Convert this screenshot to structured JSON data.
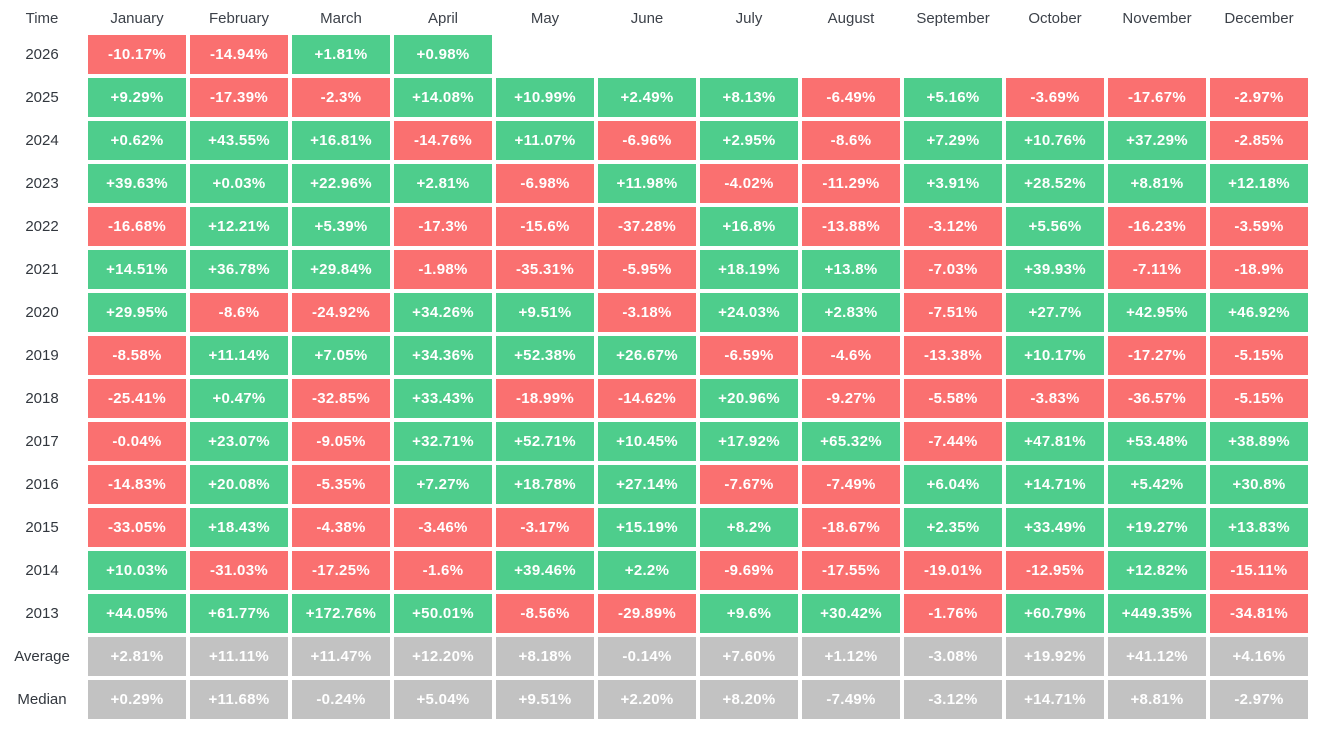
{
  "colors": {
    "positive": "#4ECD8C",
    "negative": "#FA7070",
    "neutral": "#C2C2C2",
    "header_text": "#3C4149",
    "label_text": "#32373E",
    "cell_text": "#FFFFFF",
    "background": "#FFFFFF"
  },
  "chart_data": {
    "type": "heatmap",
    "title": "",
    "corner_label": "Time",
    "columns": [
      "January",
      "February",
      "March",
      "April",
      "May",
      "June",
      "July",
      "August",
      "September",
      "October",
      "November",
      "December"
    ],
    "value_format": "percent",
    "color_rule": "green for values starting with +, red for values starting with -, gray for summary rows, blank for missing",
    "rows": [
      {
        "label": "2026",
        "kind": "year",
        "values": [
          "-10.17%",
          "-14.94%",
          "+1.81%",
          "+0.98%",
          null,
          null,
          null,
          null,
          null,
          null,
          null,
          null
        ]
      },
      {
        "label": "2025",
        "kind": "year",
        "values": [
          "+9.29%",
          "-17.39%",
          "-2.3%",
          "+14.08%",
          "+10.99%",
          "+2.49%",
          "+8.13%",
          "-6.49%",
          "+5.16%",
          "-3.69%",
          "-17.67%",
          "-2.97%"
        ]
      },
      {
        "label": "2024",
        "kind": "year",
        "values": [
          "+0.62%",
          "+43.55%",
          "+16.81%",
          "-14.76%",
          "+11.07%",
          "-6.96%",
          "+2.95%",
          "-8.6%",
          "+7.29%",
          "+10.76%",
          "+37.29%",
          "-2.85%"
        ]
      },
      {
        "label": "2023",
        "kind": "year",
        "values": [
          "+39.63%",
          "+0.03%",
          "+22.96%",
          "+2.81%",
          "-6.98%",
          "+11.98%",
          "-4.02%",
          "-11.29%",
          "+3.91%",
          "+28.52%",
          "+8.81%",
          "+12.18%"
        ]
      },
      {
        "label": "2022",
        "kind": "year",
        "values": [
          "-16.68%",
          "+12.21%",
          "+5.39%",
          "-17.3%",
          "-15.6%",
          "-37.28%",
          "+16.8%",
          "-13.88%",
          "-3.12%",
          "+5.56%",
          "-16.23%",
          "-3.59%"
        ]
      },
      {
        "label": "2021",
        "kind": "year",
        "values": [
          "+14.51%",
          "+36.78%",
          "+29.84%",
          "-1.98%",
          "-35.31%",
          "-5.95%",
          "+18.19%",
          "+13.8%",
          "-7.03%",
          "+39.93%",
          "-7.11%",
          "-18.9%"
        ]
      },
      {
        "label": "2020",
        "kind": "year",
        "values": [
          "+29.95%",
          "-8.6%",
          "-24.92%",
          "+34.26%",
          "+9.51%",
          "-3.18%",
          "+24.03%",
          "+2.83%",
          "-7.51%",
          "+27.7%",
          "+42.95%",
          "+46.92%"
        ]
      },
      {
        "label": "2019",
        "kind": "year",
        "values": [
          "-8.58%",
          "+11.14%",
          "+7.05%",
          "+34.36%",
          "+52.38%",
          "+26.67%",
          "-6.59%",
          "-4.6%",
          "-13.38%",
          "+10.17%",
          "-17.27%",
          "-5.15%"
        ]
      },
      {
        "label": "2018",
        "kind": "year",
        "values": [
          "-25.41%",
          "+0.47%",
          "-32.85%",
          "+33.43%",
          "-18.99%",
          "-14.62%",
          "+20.96%",
          "-9.27%",
          "-5.58%",
          "-3.83%",
          "-36.57%",
          "-5.15%"
        ]
      },
      {
        "label": "2017",
        "kind": "year",
        "values": [
          "-0.04%",
          "+23.07%",
          "-9.05%",
          "+32.71%",
          "+52.71%",
          "+10.45%",
          "+17.92%",
          "+65.32%",
          "-7.44%",
          "+47.81%",
          "+53.48%",
          "+38.89%"
        ]
      },
      {
        "label": "2016",
        "kind": "year",
        "values": [
          "-14.83%",
          "+20.08%",
          "-5.35%",
          "+7.27%",
          "+18.78%",
          "+27.14%",
          "-7.67%",
          "-7.49%",
          "+6.04%",
          "+14.71%",
          "+5.42%",
          "+30.8%"
        ]
      },
      {
        "label": "2015",
        "kind": "year",
        "values": [
          "-33.05%",
          "+18.43%",
          "-4.38%",
          "-3.46%",
          "-3.17%",
          "+15.19%",
          "+8.2%",
          "-18.67%",
          "+2.35%",
          "+33.49%",
          "+19.27%",
          "+13.83%"
        ]
      },
      {
        "label": "2014",
        "kind": "year",
        "values": [
          "+10.03%",
          "-31.03%",
          "-17.25%",
          "-1.6%",
          "+39.46%",
          "+2.2%",
          "-9.69%",
          "-17.55%",
          "-19.01%",
          "-12.95%",
          "+12.82%",
          "-15.11%"
        ]
      },
      {
        "label": "2013",
        "kind": "year",
        "values": [
          "+44.05%",
          "+61.77%",
          "+172.76%",
          "+50.01%",
          "-8.56%",
          "-29.89%",
          "+9.6%",
          "+30.42%",
          "-1.76%",
          "+60.79%",
          "+449.35%",
          "-34.81%"
        ]
      },
      {
        "label": "Average",
        "kind": "summary",
        "values": [
          "+2.81%",
          "+11.11%",
          "+11.47%",
          "+12.20%",
          "+8.18%",
          "-0.14%",
          "+7.60%",
          "+1.12%",
          "-3.08%",
          "+19.92%",
          "+41.12%",
          "+4.16%"
        ]
      },
      {
        "label": "Median",
        "kind": "summary",
        "values": [
          "+0.29%",
          "+11.68%",
          "-0.24%",
          "+5.04%",
          "+9.51%",
          "+2.20%",
          "+8.20%",
          "-7.49%",
          "-3.12%",
          "+14.71%",
          "+8.81%",
          "-2.97%"
        ]
      }
    ]
  }
}
